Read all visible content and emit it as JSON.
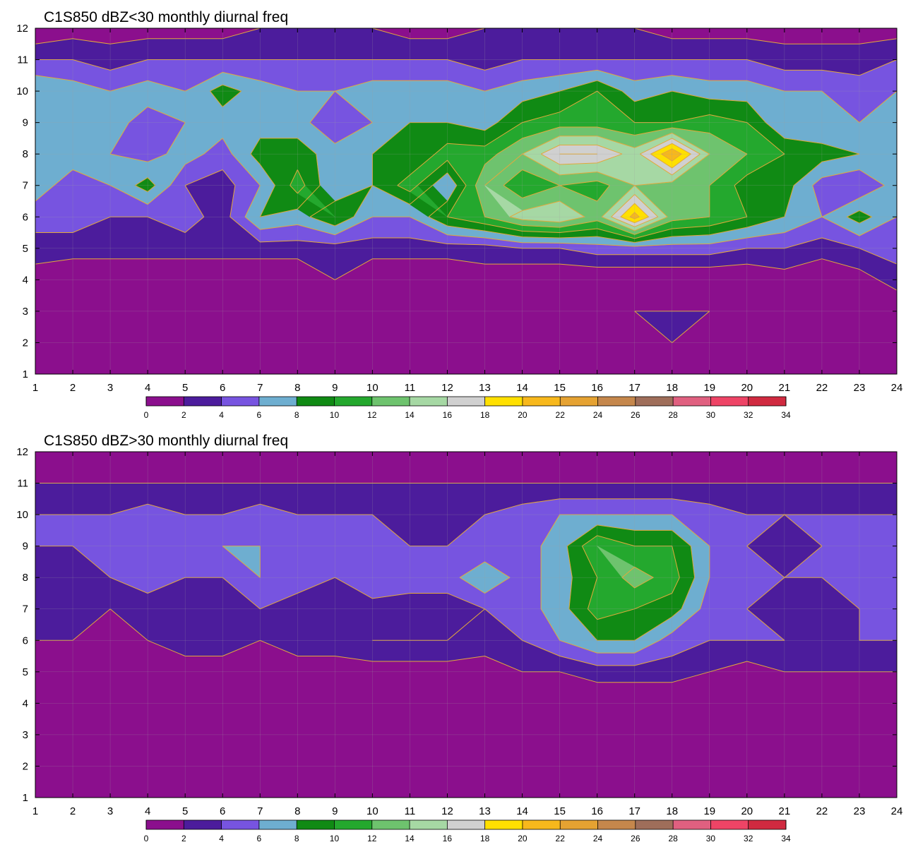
{
  "chart_data": [
    {
      "type": "heatmap",
      "title": "C1S850 dBZ<30 monthly diurnal freq",
      "x": [
        1,
        2,
        3,
        4,
        5,
        6,
        7,
        8,
        9,
        10,
        11,
        12,
        13,
        14,
        15,
        16,
        17,
        18,
        19,
        20,
        21,
        22,
        23,
        24
      ],
      "y": [
        1,
        2,
        3,
        4,
        5,
        6,
        7,
        8,
        9,
        10,
        11,
        12
      ],
      "xlim": [
        1,
        24
      ],
      "ylim": [
        1,
        12
      ],
      "x_ticks": [
        "1",
        "2",
        "3",
        "4",
        "5",
        "6",
        "7",
        "8",
        "9",
        "10",
        "11",
        "12",
        "13",
        "14",
        "15",
        "16",
        "17",
        "18",
        "19",
        "20",
        "21",
        "22",
        "23",
        "24"
      ],
      "y_ticks": [
        "1",
        "2",
        "3",
        "4",
        "5",
        "6",
        "7",
        "8",
        "9",
        "10",
        "11",
        "12"
      ],
      "z": [
        [
          0,
          0,
          0,
          0,
          0,
          0,
          0,
          0,
          0,
          0,
          0,
          0,
          0,
          0,
          0,
          0,
          0,
          0,
          0,
          0,
          0,
          0,
          0,
          0
        ],
        [
          0,
          0,
          0,
          0,
          0,
          0,
          0,
          0,
          0,
          0,
          0,
          0,
          0,
          0,
          0,
          0,
          1,
          2,
          0,
          0,
          0,
          0,
          0,
          0
        ],
        [
          0,
          0,
          0,
          0,
          0,
          0,
          0,
          0,
          1,
          0,
          0,
          0,
          0,
          0,
          0,
          1,
          2,
          2,
          2,
          0,
          0,
          0,
          0,
          0
        ],
        [
          1,
          0,
          0,
          0,
          0,
          0,
          0,
          0,
          2,
          0,
          0,
          0,
          1,
          0,
          0,
          0,
          0,
          0,
          0,
          0,
          1,
          0,
          1,
          3
        ],
        [
          3,
          3,
          3,
          3,
          3,
          3,
          3,
          3,
          3,
          3,
          3,
          3,
          3,
          4,
          4,
          5,
          5,
          5,
          5,
          4,
          4,
          3,
          4,
          5
        ],
        [
          5,
          5,
          4,
          4,
          5,
          3,
          8,
          7,
          10,
          6,
          6,
          10,
          12,
          15,
          16,
          13,
          21,
          13,
          12,
          10,
          8,
          6,
          9,
          6
        ],
        [
          7,
          5,
          6,
          9,
          4,
          3,
          6,
          11,
          6,
          8,
          11,
          6,
          14,
          10,
          12,
          11,
          14,
          13,
          12,
          9,
          9,
          5,
          4,
          7
        ],
        [
          7,
          7,
          6,
          5,
          7,
          5,
          9,
          9,
          7,
          8,
          8,
          11,
          11,
          14,
          18,
          18,
          15,
          22,
          14,
          12,
          10,
          9,
          8,
          7
        ],
        [
          6,
          7,
          7,
          5,
          6,
          7,
          7,
          7,
          4,
          6,
          8,
          8,
          7,
          10,
          11,
          11,
          10,
          10,
          11,
          10,
          6,
          6,
          6,
          7
        ],
        [
          8,
          7,
          6,
          7,
          6,
          9,
          7,
          6,
          6,
          7,
          7,
          7,
          6,
          7,
          8,
          10,
          7,
          8,
          7,
          7,
          6,
          6,
          5,
          6
        ],
        [
          4,
          4,
          3,
          4,
          4,
          4,
          4,
          4,
          4,
          4,
          4,
          4,
          3,
          4,
          4,
          4,
          4,
          4,
          4,
          4,
          3,
          3,
          3,
          4
        ],
        [
          0,
          1,
          1,
          1,
          1,
          1,
          2,
          2,
          2,
          2,
          1,
          1,
          2,
          2,
          2,
          2,
          2,
          1,
          1,
          1,
          1,
          1,
          1,
          1
        ]
      ],
      "levels": [
        0,
        2,
        4,
        6,
        8,
        10,
        12,
        14,
        16,
        18,
        20,
        22,
        24,
        26,
        28,
        30,
        32,
        34
      ],
      "colorbar_labels": [
        "0",
        "2",
        "4",
        "6",
        "8",
        "10",
        "12",
        "14",
        "16",
        "18",
        "20",
        "22",
        "24",
        "26",
        "28",
        "30",
        "32",
        "34"
      ]
    },
    {
      "type": "heatmap",
      "title": "C1S850 dBZ>30 monthly diurnal freq",
      "x": [
        1,
        2,
        3,
        4,
        5,
        6,
        7,
        8,
        9,
        10,
        11,
        12,
        13,
        14,
        15,
        16,
        17,
        18,
        19,
        20,
        21,
        22,
        23,
        24
      ],
      "y": [
        1,
        2,
        3,
        4,
        5,
        6,
        7,
        8,
        9,
        10,
        11,
        12
      ],
      "xlim": [
        1,
        24
      ],
      "ylim": [
        1,
        12
      ],
      "x_ticks": [
        "1",
        "2",
        "3",
        "4",
        "5",
        "6",
        "7",
        "8",
        "9",
        "10",
        "11",
        "12",
        "13",
        "14",
        "15",
        "16",
        "17",
        "18",
        "19",
        "20",
        "21",
        "22",
        "23",
        "24"
      ],
      "y_ticks": [
        "1",
        "2",
        "3",
        "4",
        "5",
        "6",
        "7",
        "8",
        "9",
        "10",
        "11",
        "12"
      ],
      "z": [
        [
          0,
          0,
          0,
          0,
          0,
          0,
          0,
          0,
          0,
          0,
          0,
          0,
          0,
          0,
          0,
          0,
          0,
          0,
          0,
          0,
          0,
          0,
          0,
          0
        ],
        [
          0,
          0,
          0,
          0,
          0,
          0,
          0,
          0,
          0,
          0,
          0,
          0,
          0,
          0,
          0,
          0,
          0,
          0,
          0,
          0,
          0,
          0,
          0,
          0
        ],
        [
          0,
          0,
          0,
          0,
          0,
          0,
          0,
          0,
          0,
          0,
          0,
          0,
          0,
          0,
          0,
          0,
          0,
          0,
          0,
          0,
          0,
          0,
          0,
          0
        ],
        [
          0,
          0,
          0,
          0,
          0,
          0,
          0,
          0,
          0,
          0,
          0,
          0,
          0,
          0,
          0,
          0,
          0,
          0,
          0,
          0,
          0,
          0,
          0,
          0
        ],
        [
          1,
          1,
          1,
          1,
          1,
          1,
          1,
          1,
          1,
          1,
          1,
          1,
          1,
          2,
          2,
          3,
          3,
          3,
          2,
          1,
          2,
          2,
          2,
          2
        ],
        [
          2,
          2,
          1,
          2,
          3,
          3,
          2,
          3,
          3,
          4,
          4,
          4,
          3,
          4,
          6,
          8,
          8,
          5,
          4,
          4,
          4,
          2,
          4,
          4
        ],
        [
          3,
          3,
          2,
          3,
          3,
          2,
          4,
          3,
          3,
          3,
          3,
          3,
          4,
          5,
          7,
          11,
          10,
          9,
          5,
          4,
          2,
          3,
          4,
          4
        ],
        [
          3,
          3,
          4,
          5,
          4,
          4,
          6,
          5,
          4,
          6,
          5,
          5,
          8,
          5,
          7,
          10,
          13,
          11,
          6,
          5,
          4,
          4,
          4,
          4
        ],
        [
          4,
          4,
          5,
          5,
          5,
          6,
          6,
          5,
          4,
          4,
          4,
          4,
          4,
          5,
          7,
          12,
          10,
          10,
          6,
          4,
          3,
          4,
          4,
          4
        ],
        [
          4,
          4,
          4,
          5,
          4,
          4,
          5,
          4,
          4,
          4,
          3,
          3,
          4,
          5,
          6,
          6,
          6,
          6,
          5,
          4,
          4,
          4,
          4,
          4
        ],
        [
          2,
          2,
          2,
          2,
          2,
          2,
          2,
          2,
          2,
          2,
          2,
          2,
          2,
          2,
          2,
          2,
          2,
          2,
          2,
          2,
          2,
          2,
          2,
          2
        ],
        [
          0,
          0,
          0,
          0,
          0,
          0,
          0,
          0,
          0,
          0,
          0,
          0,
          0,
          0,
          0,
          0,
          0,
          0,
          0,
          0,
          0,
          0,
          0,
          0
        ]
      ],
      "levels": [
        0,
        2,
        4,
        6,
        8,
        10,
        12,
        14,
        16,
        18,
        20,
        22,
        24,
        26,
        28,
        30,
        32,
        34
      ],
      "colorbar_labels": [
        "0",
        "2",
        "4",
        "6",
        "8",
        "10",
        "12",
        "14",
        "16",
        "18",
        "20",
        "22",
        "24",
        "26",
        "28",
        "30",
        "32",
        "34"
      ]
    }
  ],
  "colors": {
    "bins": [
      "#8b0f8d",
      "#4c1c9c",
      "#7754e0",
      "#6eaed0",
      "#108a14",
      "#24a82e",
      "#6ec36e",
      "#a6d8a4",
      "#d0d0d0",
      "#ffe000",
      "#f7b81c",
      "#e5a232",
      "#c5874c",
      "#9f6e5a",
      "#e06080",
      "#ee4466",
      "#d02a40"
    ],
    "contour_line": "#e3a83b",
    "grid": "#a0a0a0"
  }
}
